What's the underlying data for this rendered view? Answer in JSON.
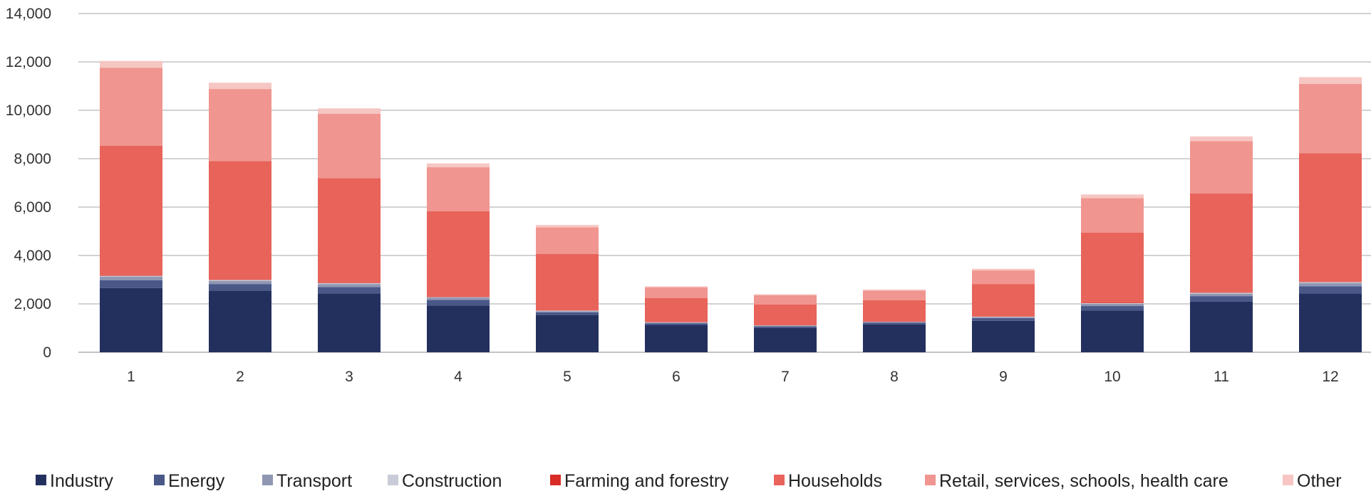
{
  "chart_data": {
    "type": "bar",
    "stacked": true,
    "categories": [
      "1",
      "2",
      "3",
      "4",
      "5",
      "6",
      "7",
      "8",
      "9",
      "10",
      "11",
      "12"
    ],
    "ylim": [
      0,
      14000
    ],
    "yticks": [
      "0",
      "2,000",
      "4,000",
      "6,000",
      "8,000",
      "10,000",
      "12,000",
      "14,000"
    ],
    "ytick_values": [
      0,
      2000,
      4000,
      6000,
      8000,
      10000,
      12000,
      14000
    ],
    "grid": true,
    "legend_position": "bottom",
    "series": [
      {
        "name": "Industry",
        "color": "#23305e",
        "values": [
          2650,
          2550,
          2430,
          1930,
          1530,
          1130,
          1010,
          1150,
          1300,
          1730,
          2090,
          2430
        ]
      },
      {
        "name": "Energy",
        "color": "#4a5888",
        "values": [
          330,
          270,
          260,
          230,
          120,
          70,
          60,
          70,
          110,
          180,
          230,
          300
        ]
      },
      {
        "name": "Transport",
        "color": "#8f97b3",
        "values": [
          140,
          130,
          130,
          90,
          50,
          30,
          30,
          30,
          40,
          90,
          100,
          130
        ]
      },
      {
        "name": "Construction",
        "color": "#c9ccd8",
        "values": [
          40,
          40,
          40,
          30,
          20,
          10,
          10,
          10,
          20,
          30,
          40,
          40
        ]
      },
      {
        "name": "Farming and forestry",
        "color": "#d92b27",
        "values": [
          20,
          20,
          20,
          15,
          10,
          5,
          5,
          5,
          10,
          15,
          20,
          20
        ]
      },
      {
        "name": "Households",
        "color": "#e8635a",
        "values": [
          5350,
          4890,
          4310,
          3530,
          2330,
          990,
          855,
          885,
          1340,
          2895,
          4080,
          5300
        ]
      },
      {
        "name": "Retail, services, schools, health care",
        "color": "#f0958f",
        "values": [
          3230,
          2980,
          2670,
          1820,
          1100,
          450,
          390,
          400,
          560,
          1430,
          2160,
          2870
        ]
      },
      {
        "name": "Other",
        "color": "#f6c6c3",
        "values": [
          280,
          260,
          220,
          160,
          100,
          40,
          40,
          40,
          70,
          150,
          200,
          280
        ]
      }
    ]
  }
}
